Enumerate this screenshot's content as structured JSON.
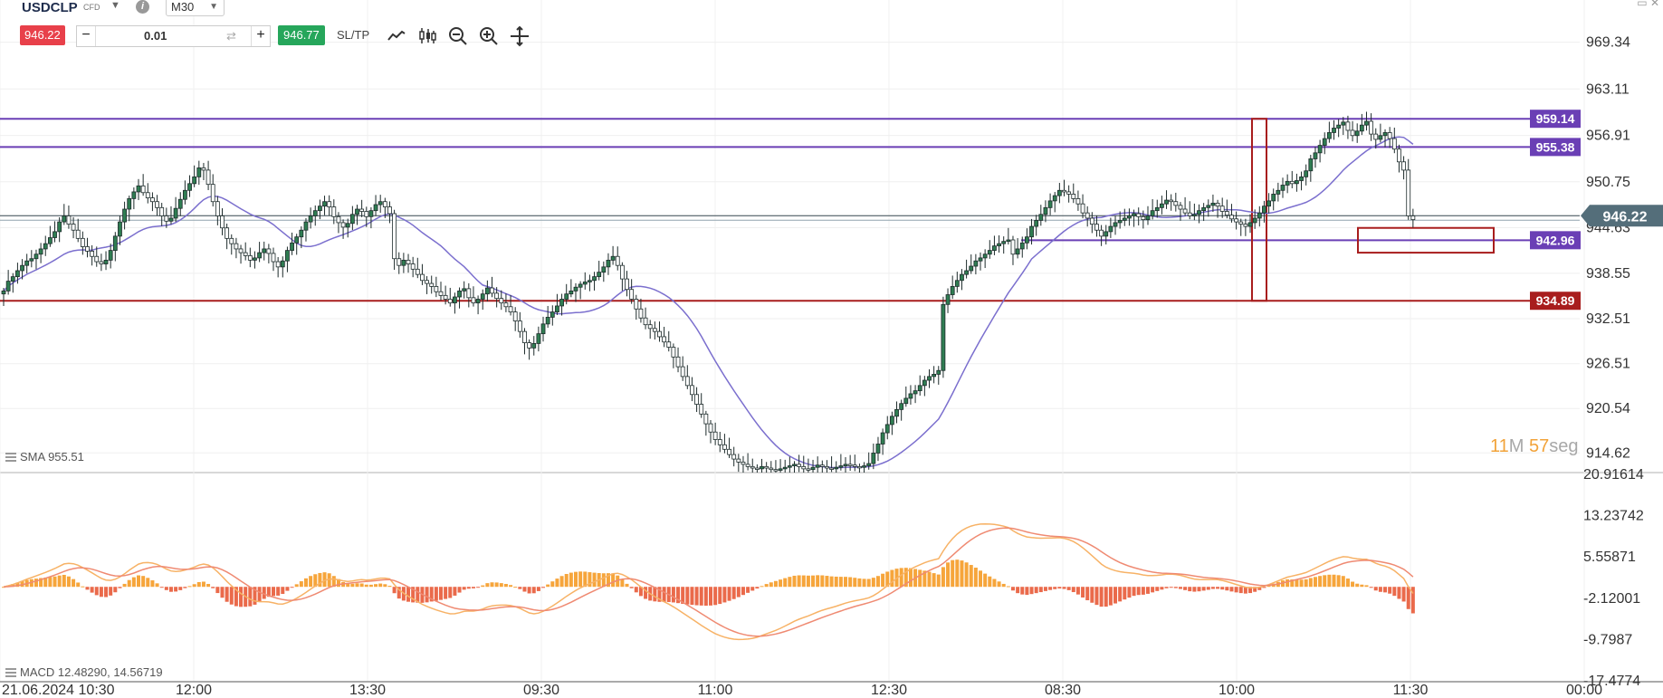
{
  "toolbar": {
    "symbol": "USDCLP",
    "symbol_type": "CFD",
    "timeframe": "M30",
    "bid": "946.22",
    "ask": "946.77",
    "quantity": "0.01",
    "minus": "−",
    "plus": "+",
    "sltp": "SL/TP",
    "icons": [
      "line-chart-icon",
      "candlestick-icon",
      "zoom-out-icon",
      "zoom-in-icon",
      "crosshair-icon"
    ]
  },
  "colors": {
    "bull": "#2f7d52",
    "bear": "#b02a37",
    "purple": "#6a3fb5",
    "red": "#a81d1d",
    "sma": "#7b6fce",
    "macd_pos": "#f6a53b",
    "macd_neg": "#ea6a4b"
  },
  "indicators": {
    "sma_label": "SMA 955.51",
    "macd_label": "MACD 12.48290, 14.56719"
  },
  "timer": {
    "minutes": "11",
    "m_unit": "M",
    "seconds": "57",
    "s_unit": "seg"
  },
  "chart_data": [
    {
      "type": "candlestick",
      "title": "USDCLP",
      "timeframe": "M30",
      "ylim": [
        912.0,
        974.0
      ],
      "y_ticks": [
        "969.34",
        "963.11",
        "956.91",
        "950.75",
        "944.63",
        "938.55",
        "932.51",
        "926.51",
        "920.54",
        "914.62"
      ],
      "x_ticks": [
        "21.06.2024 10:30",
        "12:00",
        "13:30",
        "09:30",
        "11:00",
        "12:30",
        "08:30",
        "10:00",
        "11:30",
        "00:00"
      ],
      "current_price": "946.22",
      "levels": [
        {
          "value": 959.14,
          "label": "959.14",
          "color": "purple"
        },
        {
          "value": 955.38,
          "label": "955.38",
          "color": "purple"
        },
        {
          "value": 942.96,
          "label": "942.96",
          "color": "purple"
        },
        {
          "value": 934.89,
          "label": "934.89",
          "color": "red"
        }
      ],
      "zones": [
        {
          "from": 934.89,
          "to": 959.14,
          "color": "red"
        },
        {
          "from": 941.3,
          "to": 944.6,
          "color": "red"
        }
      ],
      "closes": [
        936.2,
        937.5,
        938.1,
        938.9,
        939.6,
        940.2,
        940.5,
        941.1,
        941.8,
        942.5,
        943.3,
        944.1,
        945.4,
        946.2,
        945.1,
        944.3,
        943.2,
        942.1,
        941.5,
        940.8,
        940.1,
        939.8,
        940.3,
        941.6,
        943.5,
        945.4,
        947.1,
        948.5,
        949.4,
        950.2,
        949.3,
        948.6,
        948.1,
        947.3,
        946.2,
        945.5,
        945.9,
        947.2,
        948.4,
        949.6,
        950.5,
        951.4,
        952.6,
        952.3,
        950.4,
        948.1,
        946.2,
        944.6,
        943.2,
        942.5,
        941.8,
        941.3,
        940.9,
        940.3,
        940.6,
        941.3,
        941.8,
        941.2,
        940.1,
        939.4,
        940.2,
        941.6,
        942.6,
        943.4,
        944.3,
        945.4,
        946.2,
        946.9,
        947.5,
        948.1,
        947.4,
        946.1,
        945.3,
        944.7,
        945.2,
        946.4,
        947.1,
        946.8,
        946.1,
        946.9,
        947.7,
        948.1,
        947.4,
        946.5,
        940.5,
        939.6,
        940.3,
        939.8,
        939.1,
        938.4,
        937.6,
        937.2,
        936.8,
        936.1,
        935.6,
        935.1,
        934.6,
        935.4,
        936.2,
        936.5,
        935.3,
        934.6,
        935.1,
        935.8,
        936.6,
        935.9,
        935.2,
        934.6,
        934.1,
        933.4,
        932.2,
        930.8,
        929.3,
        928.6,
        929.2,
        930.5,
        931.8,
        932.7,
        933.4,
        934.2,
        935.1,
        935.8,
        936.2,
        936.7,
        937.1,
        937.4,
        937.6,
        938.1,
        938.7,
        939.4,
        940.3,
        940.8,
        939.6,
        937.8,
        936.4,
        935.1,
        933.8,
        932.6,
        931.7,
        931.2,
        930.8,
        930.1,
        929.4,
        928.7,
        927.4,
        926.1,
        924.8,
        923.6,
        922.4,
        921.1,
        919.8,
        918.5,
        917.4,
        916.4,
        915.7,
        915.1,
        914.4,
        913.8,
        913.4,
        913.1,
        912.8,
        912.6,
        912.5,
        912.8,
        912.6,
        912.4,
        912.3,
        912.5,
        912.7,
        912.9,
        913.1,
        912.8,
        912.5,
        912.4,
        912.7,
        913.0,
        912.8,
        912.6,
        912.5,
        912.7,
        912.9,
        913.1,
        913.0,
        912.8,
        912.7,
        912.9,
        913.2,
        914.6,
        915.8,
        917.3,
        918.4,
        919.5,
        920.4,
        921.2,
        921.9,
        922.5,
        922.9,
        923.6,
        924.3,
        924.8,
        925.1,
        925.6,
        934.4,
        935.7,
        936.8,
        937.6,
        938.4,
        938.9,
        939.5,
        940.2,
        940.6,
        941.1,
        941.6,
        942.2,
        942.5,
        942.8,
        943.0,
        941.1,
        941.8,
        942.6,
        943.4,
        944.8,
        945.6,
        946.4,
        947.3,
        948.2,
        948.9,
        949.6,
        949.4,
        949.1,
        948.5,
        947.8,
        946.6,
        945.9,
        945.1,
        944.3,
        943.5,
        944.1,
        944.8,
        945.3,
        945.6,
        945.9,
        946.2,
        946.5,
        946.1,
        945.7,
        946.2,
        946.9,
        947.3,
        947.8,
        948.3,
        948.1,
        947.6,
        947.1,
        946.6,
        946.2,
        946.4,
        946.9,
        947.3,
        947.6,
        947.9,
        947.5,
        946.8,
        946.3,
        945.8,
        945.4,
        945.1,
        944.8,
        945.3,
        945.9,
        946.6,
        947.5,
        948.2,
        949.1,
        949.6,
        950.3,
        950.8,
        950.5,
        950.9,
        951.4,
        952.2,
        953.8,
        954.6,
        955.6,
        956.5,
        957.3,
        957.9,
        958.3,
        958.7,
        957.6,
        956.9,
        957.5,
        958.3,
        958.8,
        957.1,
        956.4,
        956.9,
        957.3,
        956.5,
        955.1,
        953.4,
        952.3,
        946.2,
        945.7
      ]
    },
    {
      "type": "histogram+line",
      "title": "MACD",
      "ylim": [
        -17.4774,
        20.91614
      ],
      "y_ticks": [
        "20.91614",
        "13.23742",
        "5.55871",
        "-2.12001",
        "-9.7987",
        "-17.4774"
      ],
      "macd": 12.4829,
      "signal": 14.56719
    }
  ]
}
